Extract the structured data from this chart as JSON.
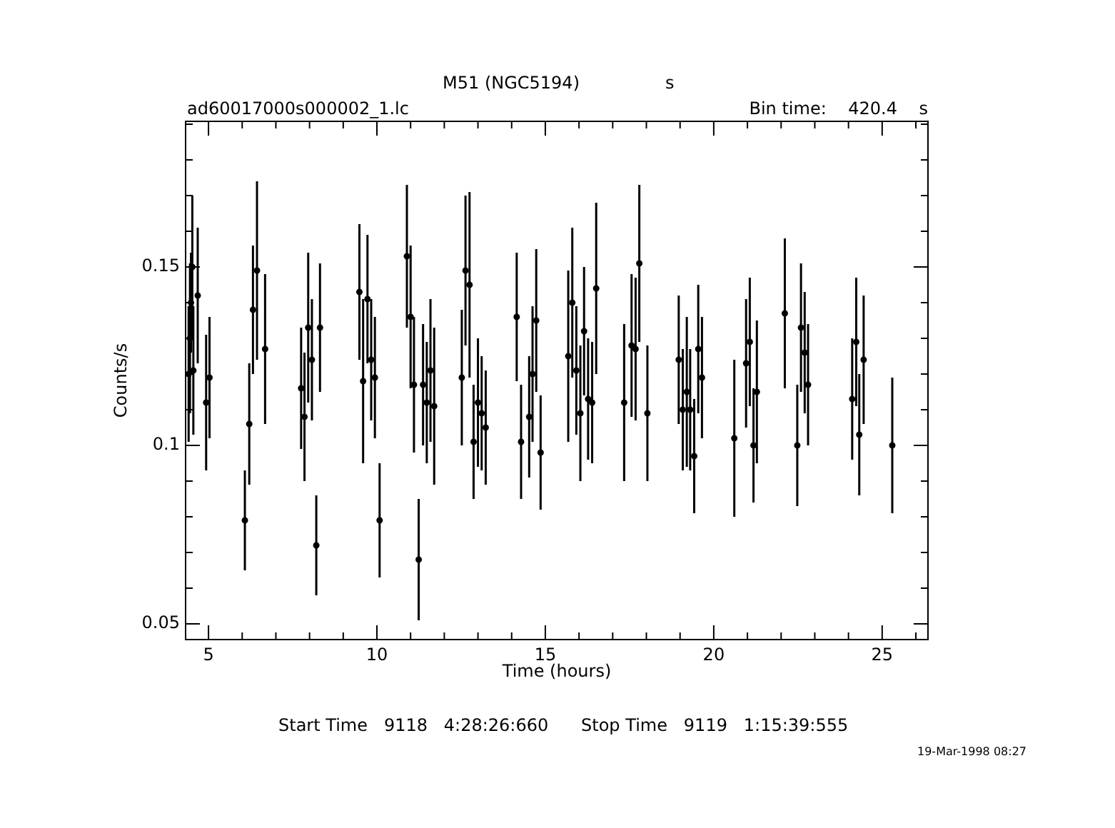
{
  "chart_data": {
    "type": "scatter",
    "title": "M51 (NGC5194)",
    "xlabel": "Time (hours)",
    "ylabel": "Counts/s",
    "annotations": [
      "s",
      "ad60017000s000002_1.lc",
      "Bin time:    420.4    s",
      "Start Time   9118   4:28:26:660      Stop Time   9119   1:15:39:555",
      "19-Mar-1998 08:27"
    ],
    "color": "#000000",
    "marker": "circle",
    "x": [
      4.41,
      4.45,
      4.48,
      4.52,
      4.55,
      4.68,
      4.93,
      5.03,
      6.08,
      6.21,
      6.32,
      6.44,
      6.68,
      7.75,
      7.85,
      7.96,
      8.07,
      8.2,
      8.31,
      9.48,
      9.59,
      9.72,
      9.83,
      9.94,
      10.08,
      10.89,
      11.0,
      11.1,
      11.24,
      11.37,
      11.48,
      11.59,
      11.7,
      12.52,
      12.63,
      12.75,
      12.87,
      13.0,
      13.11,
      13.23,
      14.15,
      14.28,
      14.52,
      14.62,
      14.73,
      14.86,
      15.68,
      15.8,
      15.92,
      16.04,
      16.15,
      16.27,
      16.39,
      16.51,
      17.34,
      17.56,
      17.68,
      17.79,
      18.03,
      18.96,
      19.08,
      19.2,
      19.3,
      19.42,
      19.54,
      19.65,
      20.61,
      20.96,
      21.07,
      21.18,
      21.28,
      22.11,
      22.48,
      22.59,
      22.7,
      22.8,
      24.11,
      24.23,
      24.32,
      24.45,
      25.3
    ],
    "values": [
      0.12,
      0.13,
      0.14,
      0.15,
      0.121,
      0.142,
      0.112,
      0.119,
      0.079,
      0.106,
      0.138,
      0.149,
      0.127,
      0.116,
      0.108,
      0.133,
      0.124,
      0.072,
      0.133,
      0.143,
      0.118,
      0.141,
      0.124,
      0.119,
      0.079,
      0.153,
      0.136,
      0.117,
      0.068,
      0.117,
      0.112,
      0.121,
      0.111,
      0.119,
      0.149,
      0.145,
      0.101,
      0.112,
      0.109,
      0.105,
      0.136,
      0.101,
      0.108,
      0.12,
      0.135,
      0.098,
      0.125,
      0.14,
      0.121,
      0.109,
      0.132,
      0.113,
      0.112,
      0.144,
      0.112,
      0.128,
      0.127,
      0.151,
      0.109,
      0.124,
      0.11,
      0.115,
      0.11,
      0.097,
      0.127,
      0.119,
      0.102,
      0.123,
      0.129,
      0.1,
      0.115,
      0.137,
      0.1,
      0.133,
      0.126,
      0.117,
      0.113,
      0.129,
      0.103,
      0.124,
      0.1
    ],
    "errors": [
      0.019,
      0.021,
      0.014,
      0.02,
      0.018,
      0.019,
      0.019,
      0.017,
      0.014,
      0.017,
      0.018,
      0.025,
      0.021,
      0.017,
      0.018,
      0.021,
      0.017,
      0.014,
      0.018,
      0.019,
      0.023,
      0.018,
      0.017,
      0.017,
      0.016,
      0.02,
      0.02,
      0.019,
      0.017,
      0.017,
      0.017,
      0.02,
      0.022,
      0.019,
      0.021,
      0.026,
      0.016,
      0.018,
      0.016,
      0.016,
      0.018,
      0.016,
      0.017,
      0.019,
      0.02,
      0.016,
      0.024,
      0.021,
      0.018,
      0.019,
      0.018,
      0.017,
      0.017,
      0.024,
      0.022,
      0.02,
      0.02,
      0.022,
      0.019,
      0.018,
      0.017,
      0.021,
      0.017,
      0.016,
      0.018,
      0.017,
      0.022,
      0.018,
      0.018,
      0.016,
      0.02,
      0.021,
      0.017,
      0.018,
      0.017,
      0.017,
      0.017,
      0.018,
      0.017,
      0.018,
      0.019
    ],
    "xerrors": [
      0.07,
      0.07,
      0.07,
      0.07,
      0.07,
      0.07,
      0.07,
      0.07,
      0.07,
      0.07,
      0.07,
      0.07,
      0.07,
      0.07,
      0.07,
      0.07,
      0.07,
      0.07,
      0.07,
      0.07,
      0.07,
      0.07,
      0.07,
      0.07,
      0.07,
      0.07,
      0.07,
      0.07,
      0.07,
      0.07,
      0.07,
      0.07,
      0.07,
      0.07,
      0.07,
      0.07,
      0.07,
      0.07,
      0.07,
      0.07,
      0.07,
      0.07,
      0.07,
      0.07,
      0.07,
      0.07,
      0.07,
      0.07,
      0.07,
      0.07,
      0.07,
      0.07,
      0.07,
      0.07,
      0.07,
      0.07,
      0.07,
      0.07,
      0.07,
      0.07,
      0.07,
      0.07,
      0.07,
      0.07,
      0.07,
      0.07,
      0.07,
      0.07,
      0.07,
      0.07,
      0.07,
      0.07,
      0.07,
      0.07,
      0.07,
      0.07,
      0.07,
      0.07,
      0.07,
      0.07,
      0.07
    ],
    "xlim": [
      4.32,
      26.36
    ],
    "ylim": [
      0.0456,
      0.1908
    ],
    "xticks": [
      5,
      {
        "value": 6,
        "label": null
      },
      {
        "value": 7,
        "label": null
      },
      {
        "value": 8,
        "label": null
      },
      {
        "value": 9,
        "label": null
      },
      10,
      {
        "value": 11,
        "label": null
      },
      {
        "value": 12,
        "label": null
      },
      {
        "value": 13,
        "label": null
      },
      {
        "value": 14,
        "label": null
      },
      15,
      {
        "value": 16,
        "label": null
      },
      {
        "value": 17,
        "label": null
      },
      {
        "value": 18,
        "label": null
      },
      {
        "value": 19,
        "label": null
      },
      20,
      {
        "value": 21,
        "label": null
      },
      {
        "value": 22,
        "label": null
      },
      {
        "value": 23,
        "label": null
      },
      {
        "value": 24,
        "label": null
      },
      25,
      {
        "value": 26,
        "label": null
      }
    ],
    "yticks": [
      0.05,
      {
        "value": 0.06,
        "label": null
      },
      {
        "value": 0.07,
        "label": null
      },
      {
        "value": 0.08,
        "label": null
      },
      {
        "value": 0.09,
        "label": null
      },
      0.1,
      {
        "value": 0.11,
        "label": null
      },
      {
        "value": 0.12,
        "label": null
      },
      {
        "value": 0.13,
        "label": null
      },
      {
        "value": 0.14,
        "label": null
      },
      0.15,
      {
        "value": 0.16,
        "label": null
      },
      {
        "value": 0.17,
        "label": null
      },
      {
        "value": 0.18,
        "label": null
      },
      {
        "value": 0.19,
        "label": null
      }
    ]
  }
}
